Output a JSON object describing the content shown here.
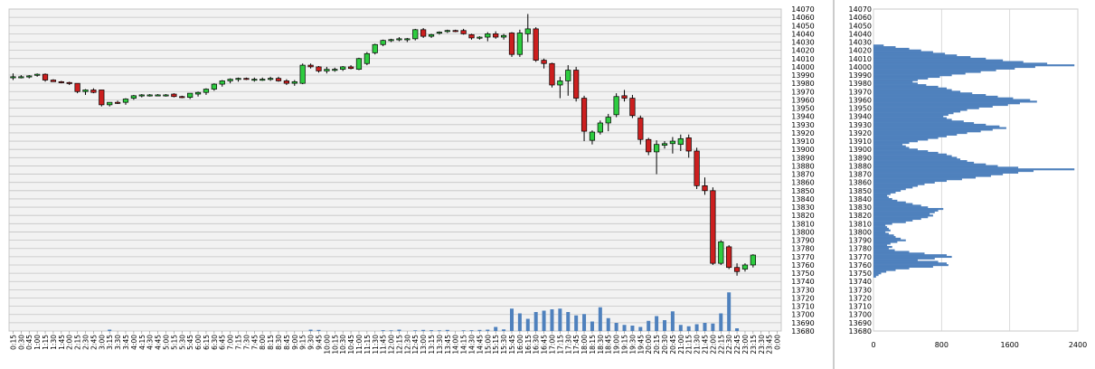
{
  "chart_data": [
    {
      "type": "candlestick",
      "title": "",
      "xlabel": "",
      "ylabel": "",
      "ylim": [
        13680,
        14070
      ],
      "yticks": [
        13680,
        13690,
        13700,
        13710,
        13720,
        13730,
        13740,
        13750,
        13760,
        13770,
        13780,
        13790,
        13800,
        13810,
        13820,
        13830,
        13840,
        13850,
        13860,
        13870,
        13880,
        13890,
        13900,
        13910,
        13920,
        13930,
        13940,
        13950,
        13960,
        13970,
        13980,
        13990,
        14000,
        14010,
        14020,
        14030,
        14040,
        14050,
        14060,
        14070
      ],
      "yticklabels": [
        "13680",
        "13690",
        "13700",
        "13710",
        "13720",
        "13730",
        "13740",
        "13750",
        "13760",
        "13770",
        "13780",
        "13790",
        "13800",
        "13810",
        "13820",
        "13830",
        "13840",
        "13850",
        "13860",
        "13870",
        "13880",
        "13890",
        "13900",
        "13910",
        "13920",
        "13930",
        "13940",
        "13950",
        "13960",
        "13970",
        "13980",
        "13990",
        "14000",
        "14010",
        "14020",
        "14030",
        "14040",
        "14050",
        "14060",
        "14070"
      ],
      "grid": true,
      "volume_max": 400,
      "categories": [
        "0:15",
        "0:30",
        "0:45",
        "1:00",
        "1:15",
        "1:30",
        "1:45",
        "2:00",
        "2:15",
        "2:30",
        "2:45",
        "3:00",
        "3:15",
        "3:30",
        "3:45",
        "4:00",
        "4:15",
        "4:30",
        "4:45",
        "5:00",
        "5:15",
        "5:30",
        "5:45",
        "6:00",
        "6:15",
        "6:30",
        "6:45",
        "7:00",
        "7:15",
        "7:30",
        "7:45",
        "8:00",
        "8:15",
        "8:30",
        "8:45",
        "9:00",
        "9:15",
        "9:30",
        "9:45",
        "10:00",
        "10:15",
        "10:30",
        "10:45",
        "11:00",
        "11:15",
        "11:30",
        "11:45",
        "12:00",
        "12:15",
        "12:30",
        "12:45",
        "13:00",
        "13:15",
        "13:30",
        "13:45",
        "14:00",
        "14:15",
        "14:30",
        "14:45",
        "15:00",
        "15:15",
        "15:30",
        "15:45",
        "16:00",
        "16:15",
        "16:30",
        "16:45",
        "17:00",
        "17:15",
        "17:30",
        "17:45",
        "18:00",
        "18:15",
        "18:30",
        "18:45",
        "19:00",
        "19:15",
        "19:30",
        "19:45",
        "20:00",
        "20:15",
        "20:30",
        "20:45",
        "21:00",
        "21:15",
        "21:30",
        "21:45",
        "22:00",
        "22:15",
        "22:30",
        "22:45",
        "23:00",
        "23:15",
        "23:30",
        "23:45",
        "0:00"
      ],
      "candles": [
        {
          "o": 13988,
          "h": 13992,
          "l": 13984,
          "c": 13988
        },
        {
          "o": 13988,
          "h": 13990,
          "l": 13986,
          "c": 13988
        },
        {
          "o": 13988,
          "h": 13990,
          "l": 13986,
          "c": 13989
        },
        {
          "o": 13990,
          "h": 13992,
          "l": 13988,
          "c": 13991
        },
        {
          "o": 13991,
          "h": 13992,
          "l": 13982,
          "c": 13984
        },
        {
          "o": 13984,
          "h": 13985,
          "l": 13982,
          "c": 13982
        },
        {
          "o": 13982,
          "h": 13983,
          "l": 13980,
          "c": 13981
        },
        {
          "o": 13981,
          "h": 13982,
          "l": 13978,
          "c": 13980
        },
        {
          "o": 13980,
          "h": 13980,
          "l": 13968,
          "c": 13970
        },
        {
          "o": 13970,
          "h": 13973,
          "l": 13966,
          "c": 13972
        },
        {
          "o": 13972,
          "h": 13974,
          "l": 13968,
          "c": 13969
        },
        {
          "o": 13972,
          "h": 13972,
          "l": 13952,
          "c": 13954
        },
        {
          "o": 13954,
          "h": 13957,
          "l": 13952,
          "c": 13957
        },
        {
          "o": 13957,
          "h": 13959,
          "l": 13955,
          "c": 13956
        },
        {
          "o": 13957,
          "h": 13962,
          "l": 13954,
          "c": 13961
        },
        {
          "o": 13962,
          "h": 13966,
          "l": 13960,
          "c": 13965
        },
        {
          "o": 13965,
          "h": 13967,
          "l": 13963,
          "c": 13966
        },
        {
          "o": 13966,
          "h": 13967,
          "l": 13964,
          "c": 13966
        },
        {
          "o": 13966,
          "h": 13967,
          "l": 13965,
          "c": 13966
        },
        {
          "o": 13966,
          "h": 13967,
          "l": 13964,
          "c": 13966
        },
        {
          "o": 13967,
          "h": 13968,
          "l": 13963,
          "c": 13964
        },
        {
          "o": 13964,
          "h": 13965,
          "l": 13962,
          "c": 13963
        },
        {
          "o": 13963,
          "h": 13968,
          "l": 13961,
          "c": 13968
        },
        {
          "o": 13967,
          "h": 13970,
          "l": 13964,
          "c": 13969
        },
        {
          "o": 13969,
          "h": 13974,
          "l": 13966,
          "c": 13973
        },
        {
          "o": 13973,
          "h": 13980,
          "l": 13971,
          "c": 13979
        },
        {
          "o": 13979,
          "h": 13984,
          "l": 13976,
          "c": 13983
        },
        {
          "o": 13983,
          "h": 13986,
          "l": 13980,
          "c": 13985
        },
        {
          "o": 13985,
          "h": 13987,
          "l": 13982,
          "c": 13986
        },
        {
          "o": 13986,
          "h": 13987,
          "l": 13984,
          "c": 13985
        },
        {
          "o": 13985,
          "h": 13987,
          "l": 13982,
          "c": 13985
        },
        {
          "o": 13985,
          "h": 13987,
          "l": 13983,
          "c": 13985
        },
        {
          "o": 13985,
          "h": 13988,
          "l": 13983,
          "c": 13986
        },
        {
          "o": 13986,
          "h": 13988,
          "l": 13982,
          "c": 13983
        },
        {
          "o": 13983,
          "h": 13985,
          "l": 13978,
          "c": 13980
        },
        {
          "o": 13980,
          "h": 13984,
          "l": 13977,
          "c": 13982
        },
        {
          "o": 13980,
          "h": 14004,
          "l": 13979,
          "c": 14002
        },
        {
          "o": 14002,
          "h": 14004,
          "l": 13998,
          "c": 14000
        },
        {
          "o": 14000,
          "h": 14001,
          "l": 13993,
          "c": 13995
        },
        {
          "o": 13995,
          "h": 14000,
          "l": 13992,
          "c": 13997
        },
        {
          "o": 13997,
          "h": 13999,
          "l": 13994,
          "c": 13997
        },
        {
          "o": 13997,
          "h": 14001,
          "l": 13995,
          "c": 14000
        },
        {
          "o": 14000,
          "h": 14002,
          "l": 13997,
          "c": 13998
        },
        {
          "o": 13997,
          "h": 14011,
          "l": 13996,
          "c": 14010
        },
        {
          "o": 14004,
          "h": 14018,
          "l": 14002,
          "c": 14016
        },
        {
          "o": 14017,
          "h": 14028,
          "l": 14015,
          "c": 14027
        },
        {
          "o": 14027,
          "h": 14033,
          "l": 14025,
          "c": 14032
        },
        {
          "o": 14032,
          "h": 14034,
          "l": 14030,
          "c": 14033
        },
        {
          "o": 14033,
          "h": 14036,
          "l": 14031,
          "c": 14034
        },
        {
          "o": 14034,
          "h": 14035,
          "l": 14030,
          "c": 14034
        },
        {
          "o": 14034,
          "h": 14046,
          "l": 14032,
          "c": 14045
        },
        {
          "o": 14045,
          "h": 14047,
          "l": 14035,
          "c": 14037
        },
        {
          "o": 14037,
          "h": 14040,
          "l": 14035,
          "c": 14039
        },
        {
          "o": 14041,
          "h": 14043,
          "l": 14039,
          "c": 14042
        },
        {
          "o": 14043,
          "h": 14045,
          "l": 14041,
          "c": 14044
        },
        {
          "o": 14044,
          "h": 14045,
          "l": 14042,
          "c": 14043
        },
        {
          "o": 14044,
          "h": 14046,
          "l": 14039,
          "c": 14040
        },
        {
          "o": 14039,
          "h": 14040,
          "l": 14033,
          "c": 14035
        },
        {
          "o": 14035,
          "h": 14037,
          "l": 14033,
          "c": 14036
        },
        {
          "o": 14036,
          "h": 14042,
          "l": 14031,
          "c": 14040
        },
        {
          "o": 14040,
          "h": 14043,
          "l": 14034,
          "c": 14036
        },
        {
          "o": 14036,
          "h": 14040,
          "l": 14033,
          "c": 14038
        },
        {
          "o": 14041,
          "h": 14042,
          "l": 14012,
          "c": 14015
        },
        {
          "o": 14015,
          "h": 14045,
          "l": 14012,
          "c": 14041
        },
        {
          "o": 14040,
          "h": 14064,
          "l": 14030,
          "c": 14046
        },
        {
          "o": 14046,
          "h": 14048,
          "l": 14006,
          "c": 14008
        },
        {
          "o": 14008,
          "h": 14010,
          "l": 13998,
          "c": 14004
        },
        {
          "o": 14004,
          "h": 14005,
          "l": 13975,
          "c": 13978
        },
        {
          "o": 13978,
          "h": 13988,
          "l": 13962,
          "c": 13983
        },
        {
          "o": 13983,
          "h": 14002,
          "l": 13965,
          "c": 13996
        },
        {
          "o": 13996,
          "h": 14000,
          "l": 13958,
          "c": 13962
        },
        {
          "o": 13962,
          "h": 13965,
          "l": 13910,
          "c": 13922
        },
        {
          "o": 13911,
          "h": 13923,
          "l": 13906,
          "c": 13921
        },
        {
          "o": 13921,
          "h": 13935,
          "l": 13918,
          "c": 13932
        },
        {
          "o": 13932,
          "h": 13943,
          "l": 13922,
          "c": 13939
        },
        {
          "o": 13942,
          "h": 13968,
          "l": 13939,
          "c": 13964
        },
        {
          "o": 13965,
          "h": 13972,
          "l": 13958,
          "c": 13962
        },
        {
          "o": 13962,
          "h": 13966,
          "l": 13938,
          "c": 13941
        },
        {
          "o": 13938,
          "h": 13941,
          "l": 13906,
          "c": 13912
        },
        {
          "o": 13912,
          "h": 13914,
          "l": 13893,
          "c": 13897
        },
        {
          "o": 13897,
          "h": 13911,
          "l": 13870,
          "c": 13906
        },
        {
          "o": 13905,
          "h": 13910,
          "l": 13901,
          "c": 13907
        },
        {
          "o": 13907,
          "h": 13915,
          "l": 13895,
          "c": 13910
        },
        {
          "o": 13906,
          "h": 13918,
          "l": 13898,
          "c": 13913
        },
        {
          "o": 13914,
          "h": 13918,
          "l": 13890,
          "c": 13898
        },
        {
          "o": 13898,
          "h": 13902,
          "l": 13852,
          "c": 13856
        },
        {
          "o": 13856,
          "h": 13866,
          "l": 13845,
          "c": 13850
        },
        {
          "o": 13850,
          "h": 13854,
          "l": 13760,
          "c": 13762
        },
        {
          "o": 13762,
          "h": 13790,
          "l": 13760,
          "c": 13788
        },
        {
          "o": 13782,
          "h": 13784,
          "l": 13755,
          "c": 13757
        },
        {
          "o": 13757,
          "h": 13762,
          "l": 13747,
          "c": 13752
        },
        {
          "o": 13755,
          "h": 13762,
          "l": 13752,
          "c": 13760
        },
        {
          "o": 13760,
          "h": 13773,
          "l": 13757,
          "c": 13772
        }
      ],
      "volumes": [
        0,
        0,
        0,
        0,
        0,
        0,
        0,
        0,
        0,
        0,
        0,
        0,
        10,
        0,
        0,
        0,
        0,
        0,
        0,
        0,
        0,
        0,
        0,
        0,
        0,
        0,
        0,
        0,
        0,
        0,
        0,
        0,
        0,
        0,
        0,
        0,
        0,
        10,
        8,
        0,
        0,
        0,
        0,
        0,
        0,
        0,
        6,
        5,
        10,
        0,
        5,
        8,
        6,
        5,
        8,
        0,
        5,
        6,
        8,
        10,
        30,
        12,
        165,
        130,
        90,
        140,
        150,
        160,
        165,
        140,
        115,
        125,
        70,
        175,
        95,
        60,
        45,
        40,
        30,
        75,
        110,
        80,
        145,
        45,
        35,
        50,
        60,
        55,
        130,
        285,
        20,
        0,
        0,
        0,
        0,
        0
      ],
      "volume_axis": "none"
    },
    {
      "type": "bar",
      "orientation": "horizontal",
      "title": "",
      "xlabel": "",
      "ylabel": "",
      "xlim": [
        0,
        2400
      ],
      "xticks": [
        0,
        800,
        1600,
        2400
      ],
      "xticklabels": [
        "0",
        "800",
        "1600",
        "2400"
      ],
      "ylim": [
        13680,
        14070
      ],
      "yticklabels": [
        "13680",
        "13690",
        "13700",
        "13710",
        "13720",
        "13730",
        "13740",
        "13750",
        "13760",
        "13770",
        "13780",
        "13790",
        "13800",
        "13810",
        "13820",
        "13830",
        "13840",
        "13850",
        "13860",
        "13870",
        "13880",
        "13890",
        "13900",
        "13910",
        "13920",
        "13930",
        "13940",
        "13950",
        "13960",
        "13970",
        "13980",
        "13990",
        "14000",
        "14010",
        "14020",
        "14030",
        "14040",
        "14050",
        "14060",
        "14070"
      ],
      "grid": true,
      "price_step": 2,
      "price_start": 13746,
      "values": [
        30,
        60,
        90,
        150,
        260,
        420,
        700,
        880,
        860,
        760,
        520,
        720,
        920,
        860,
        600,
        420,
        250,
        180,
        220,
        160,
        200,
        280,
        380,
        320,
        260,
        240,
        180,
        140,
        200,
        180,
        160,
        140,
        220,
        380,
        460,
        560,
        640,
        700,
        660,
        720,
        760,
        820,
        640,
        560,
        460,
        380,
        280,
        220,
        180,
        160,
        200,
        260,
        320,
        380,
        460,
        520,
        600,
        720,
        860,
        1040,
        1200,
        1380,
        1520,
        1700,
        1880,
        2360,
        1700,
        1460,
        1320,
        1180,
        1100,
        1020,
        980,
        920,
        860,
        760,
        640,
        520,
        420,
        380,
        340,
        420,
        520,
        640,
        760,
        860,
        980,
        1100,
        1260,
        1400,
        1560,
        1480,
        1320,
        1180,
        1060,
        920,
        860,
        820,
        880,
        940,
        1020,
        1100,
        1240,
        1400,
        1580,
        1720,
        1920,
        1840,
        1640,
        1460,
        1320,
        1160,
        1020,
        920,
        860,
        760,
        620,
        520,
        460,
        520,
        640,
        780,
        920,
        1080,
        1260,
        1440,
        1660,
        1900,
        2360,
        2040,
        1760,
        1520,
        1320,
        1140,
        980,
        840,
        700,
        560,
        420,
        260,
        120
      ]
    }
  ]
}
